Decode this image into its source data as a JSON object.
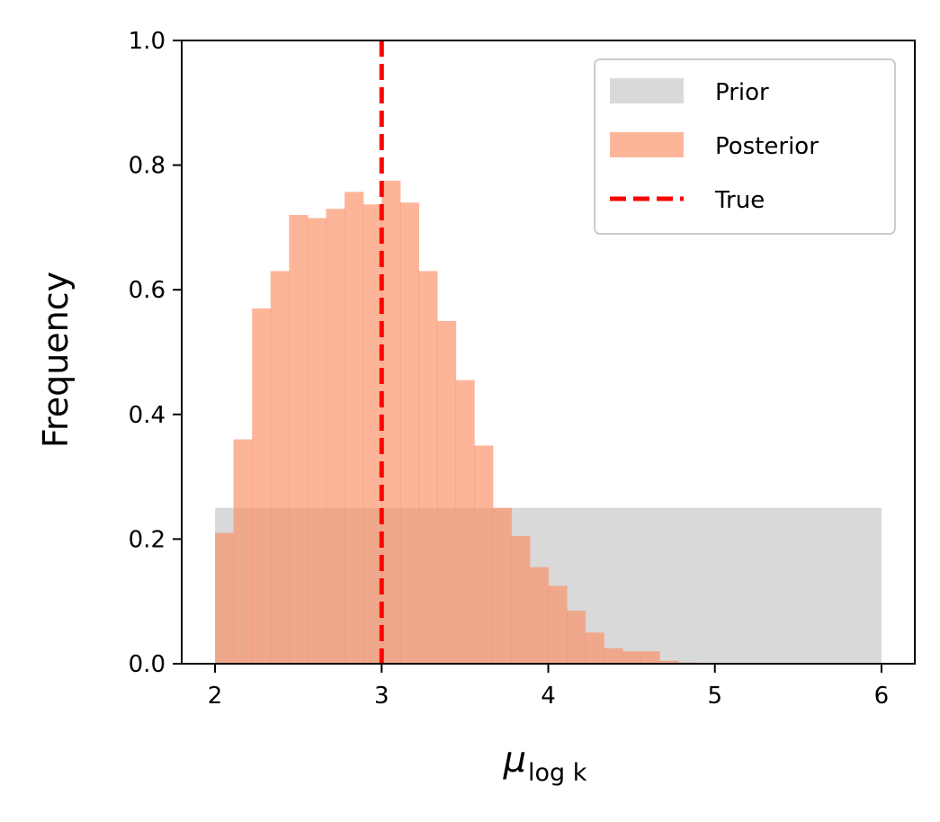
{
  "chart_data": {
    "type": "bar",
    "xlabel_main": "μ",
    "xlabel_sub": "log k",
    "ylabel": "Frequency",
    "xlim": [
      1.8,
      6.2
    ],
    "ylim": [
      0.0,
      1.0
    ],
    "xticks": [
      2,
      3,
      4,
      5,
      6
    ],
    "yticks": [
      0.0,
      0.2,
      0.4,
      0.6,
      0.8,
      1.0
    ],
    "ytick_labels": [
      "0.0",
      "0.2",
      "0.4",
      "0.6",
      "0.8",
      "1.0"
    ],
    "legend_position": "top-right",
    "series": [
      {
        "name": "Prior",
        "kind": "histogram",
        "color": "#bfbfbf",
        "bin_edges": [
          2.0,
          6.0
        ],
        "values": [
          0.25
        ]
      },
      {
        "name": "Posterior",
        "kind": "histogram",
        "color": "#fc8d62",
        "bin_start": 2.0,
        "bin_width": 0.1111,
        "values": [
          0.21,
          0.36,
          0.57,
          0.63,
          0.72,
          0.715,
          0.73,
          0.757,
          0.737,
          0.775,
          0.74,
          0.63,
          0.55,
          0.455,
          0.35,
          0.25,
          0.205,
          0.155,
          0.125,
          0.085,
          0.05,
          0.025,
          0.02,
          0.02,
          0.005,
          0.002,
          0.001,
          0.0005
        ]
      },
      {
        "name": "True",
        "kind": "vline",
        "color": "#ff0000",
        "x": 3.0
      }
    ]
  }
}
